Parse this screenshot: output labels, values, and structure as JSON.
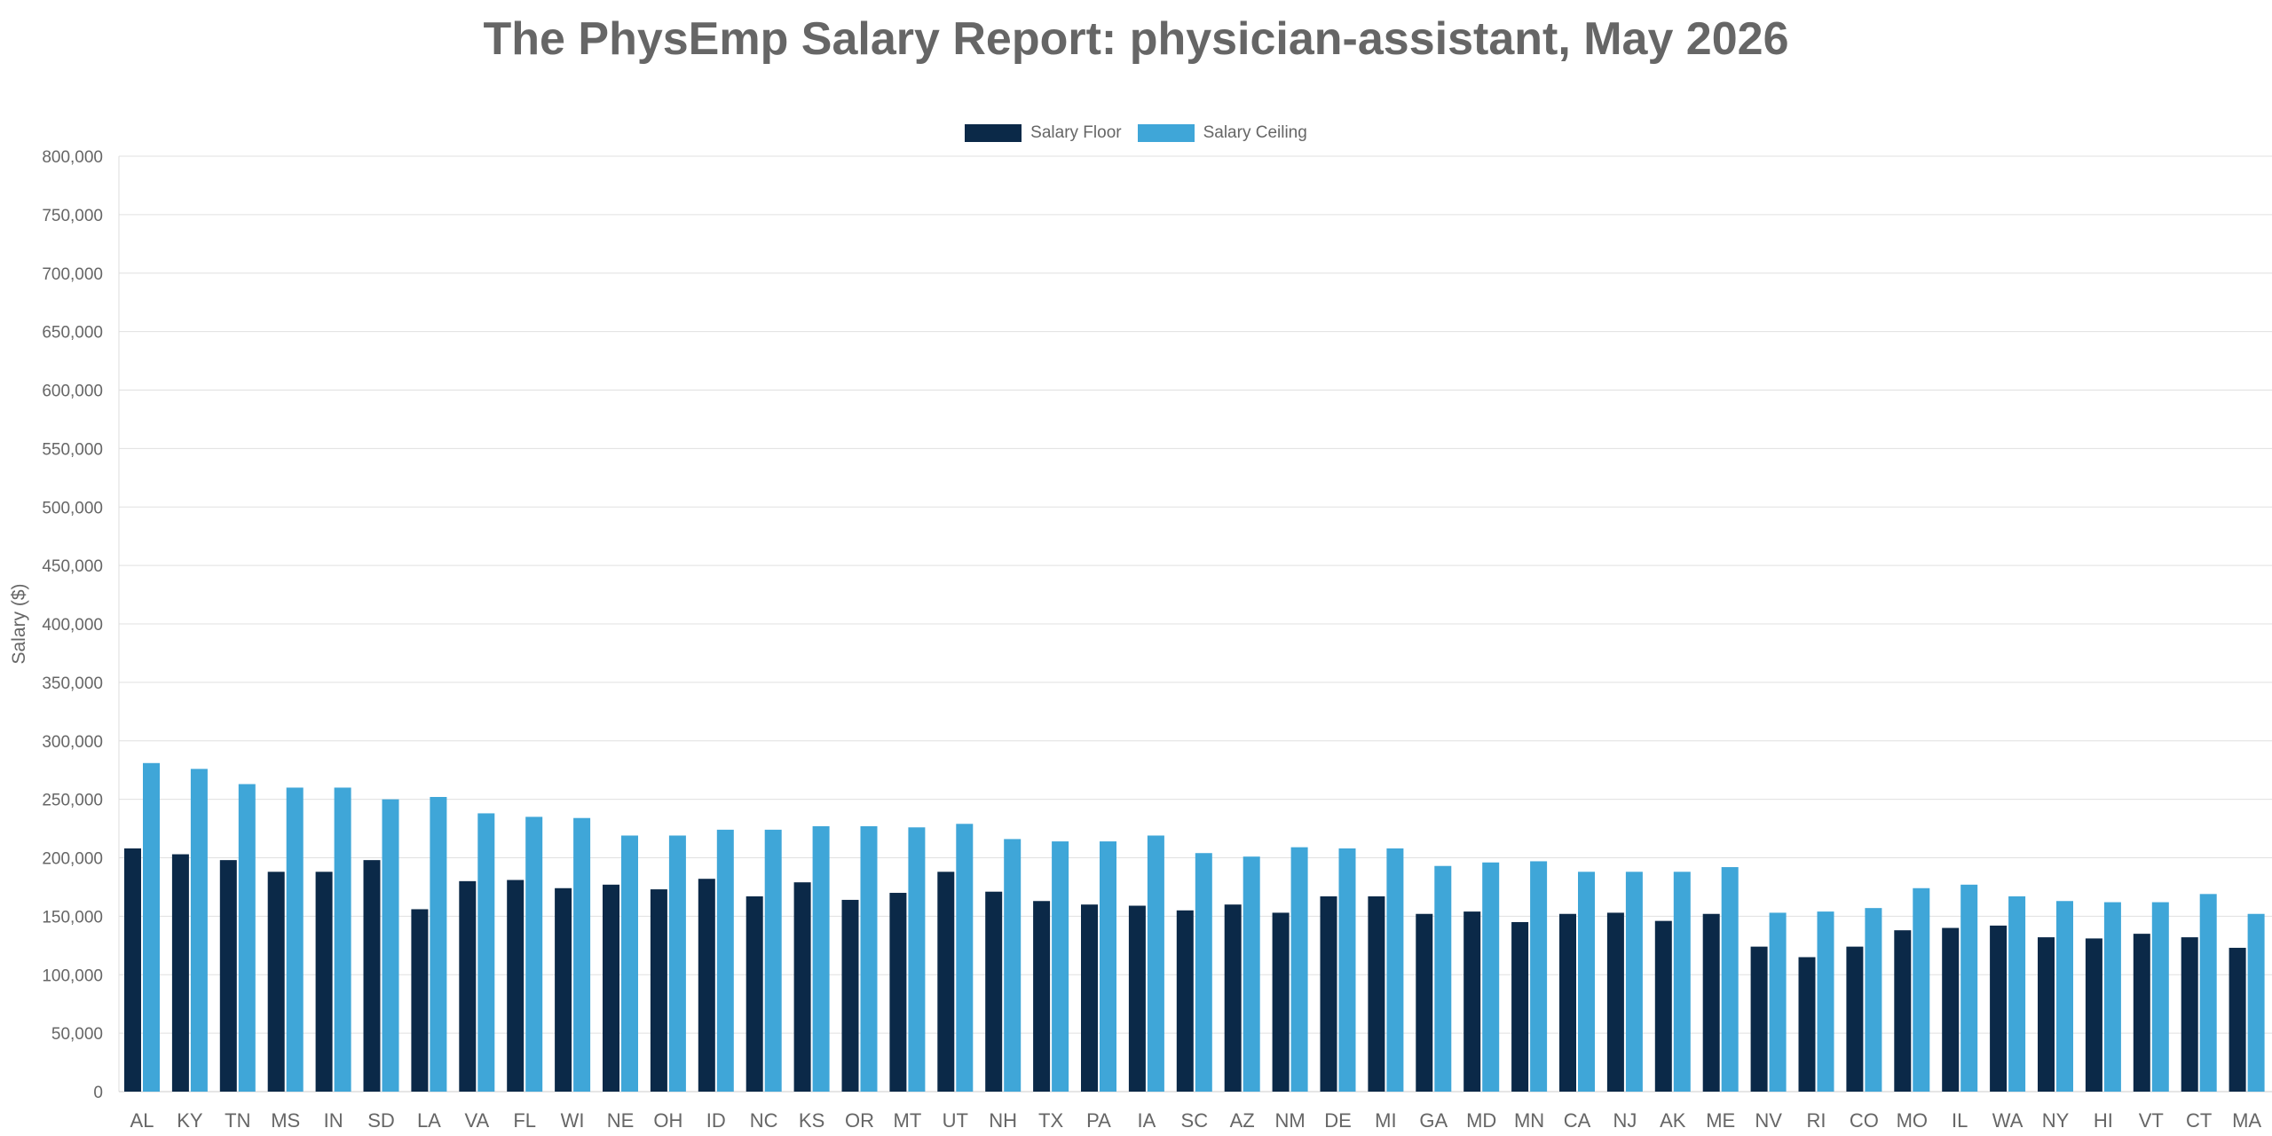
{
  "chart_data": {
    "type": "bar",
    "title": "The PhysEmp Salary Report: physician-assistant, May 2026",
    "xlabel": "",
    "ylabel": "Salary ($)",
    "ylim": [
      0,
      800000
    ],
    "ytick_step": 50000,
    "grid": true,
    "legend_placement": "top-center",
    "categories": [
      "AL",
      "KY",
      "TN",
      "MS",
      "IN",
      "SD",
      "LA",
      "VA",
      "FL",
      "WI",
      "NE",
      "OH",
      "ID",
      "NC",
      "KS",
      "OR",
      "MT",
      "UT",
      "NH",
      "TX",
      "PA",
      "IA",
      "SC",
      "AZ",
      "NM",
      "DE",
      "MI",
      "GA",
      "MD",
      "MN",
      "CA",
      "NJ",
      "AK",
      "ME",
      "NV",
      "RI",
      "CO",
      "MO",
      "IL",
      "WA",
      "NY",
      "HI",
      "VT",
      "CT",
      "MA"
    ],
    "series": [
      {
        "name": "Salary Floor",
        "color": "#0b2948",
        "values": [
          208000,
          203000,
          198000,
          188000,
          188000,
          198000,
          156000,
          180000,
          181000,
          174000,
          177000,
          173000,
          182000,
          167000,
          179000,
          164000,
          170000,
          188000,
          171000,
          163000,
          160000,
          159000,
          155000,
          160000,
          153000,
          167000,
          167000,
          152000,
          154000,
          145000,
          152000,
          153000,
          146000,
          152000,
          124000,
          115000,
          124000,
          138000,
          140000,
          142000,
          132000,
          131000,
          135000,
          132000,
          123000
        ]
      },
      {
        "name": "Salary Ceiling",
        "color": "#3fa6d8",
        "values": [
          281000,
          276000,
          263000,
          260000,
          260000,
          250000,
          252000,
          238000,
          235000,
          234000,
          219000,
          219000,
          224000,
          224000,
          227000,
          227000,
          226000,
          229000,
          216000,
          214000,
          214000,
          219000,
          204000,
          201000,
          209000,
          208000,
          208000,
          193000,
          196000,
          197000,
          188000,
          188000,
          188000,
          192000,
          153000,
          154000,
          157000,
          174000,
          177000,
          167000,
          163000,
          162000,
          162000,
          169000,
          152000
        ]
      }
    ]
  }
}
